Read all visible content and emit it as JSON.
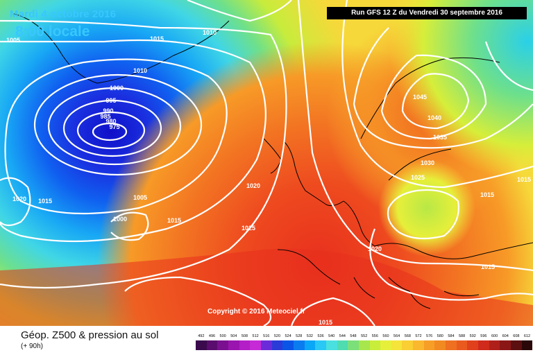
{
  "header": {
    "date": "Mardi 4 octobre 2016",
    "time": "8:00 locale",
    "run_info": "Run GFS 12 Z du Vendredi 30 septembre 2016"
  },
  "copyright": "Copyright © 2016 Meteociel.fr",
  "footer": {
    "title": "Géop. Z500 & pression au sol",
    "subtitle": "(+ 90h)"
  },
  "isobar_labels": [
    "1005",
    "1010",
    "1015",
    "1010",
    "1000",
    "995",
    "990",
    "985",
    "980",
    "975",
    "1020",
    "1015",
    "1005",
    "1000",
    "1015",
    "1020",
    "1025",
    "1045",
    "1040",
    "1035",
    "1030",
    "1025",
    "1015",
    "1015",
    "1020",
    "1015",
    "1015"
  ],
  "legend_scale": {
    "labels": [
      "492",
      "496",
      "500",
      "504",
      "508",
      "512",
      "516",
      "520",
      "524",
      "528",
      "532",
      "536",
      "540",
      "544",
      "548",
      "552",
      "556",
      "560",
      "564",
      "568",
      "572",
      "576",
      "580",
      "584",
      "588",
      "592",
      "596",
      "600",
      "604",
      "608",
      "612"
    ],
    "colors": [
      "#3a0a4d",
      "#5a0d6e",
      "#7a1090",
      "#9a14b0",
      "#b31ec7",
      "#c52ad6",
      "#6b2bd9",
      "#2a3bd8",
      "#0a55e6",
      "#0a7cf0",
      "#0aa6f7",
      "#2ac8f5",
      "#4ae0e0",
      "#4fdcb0",
      "#7be07a",
      "#a8e64d",
      "#c9ed3b",
      "#e6f03a",
      "#f5e43a",
      "#f9cf33",
      "#f9b82d",
      "#f79e27",
      "#f28a22",
      "#ee7020",
      "#ea5a1f",
      "#e0401c",
      "#cf2a1b",
      "#b0201a",
      "#8a1716",
      "#5c0f10",
      "#2a0708"
    ]
  },
  "colors": {
    "title_text": "#39c7ff",
    "isoline": "#ffffff",
    "coastline": "#000000"
  }
}
